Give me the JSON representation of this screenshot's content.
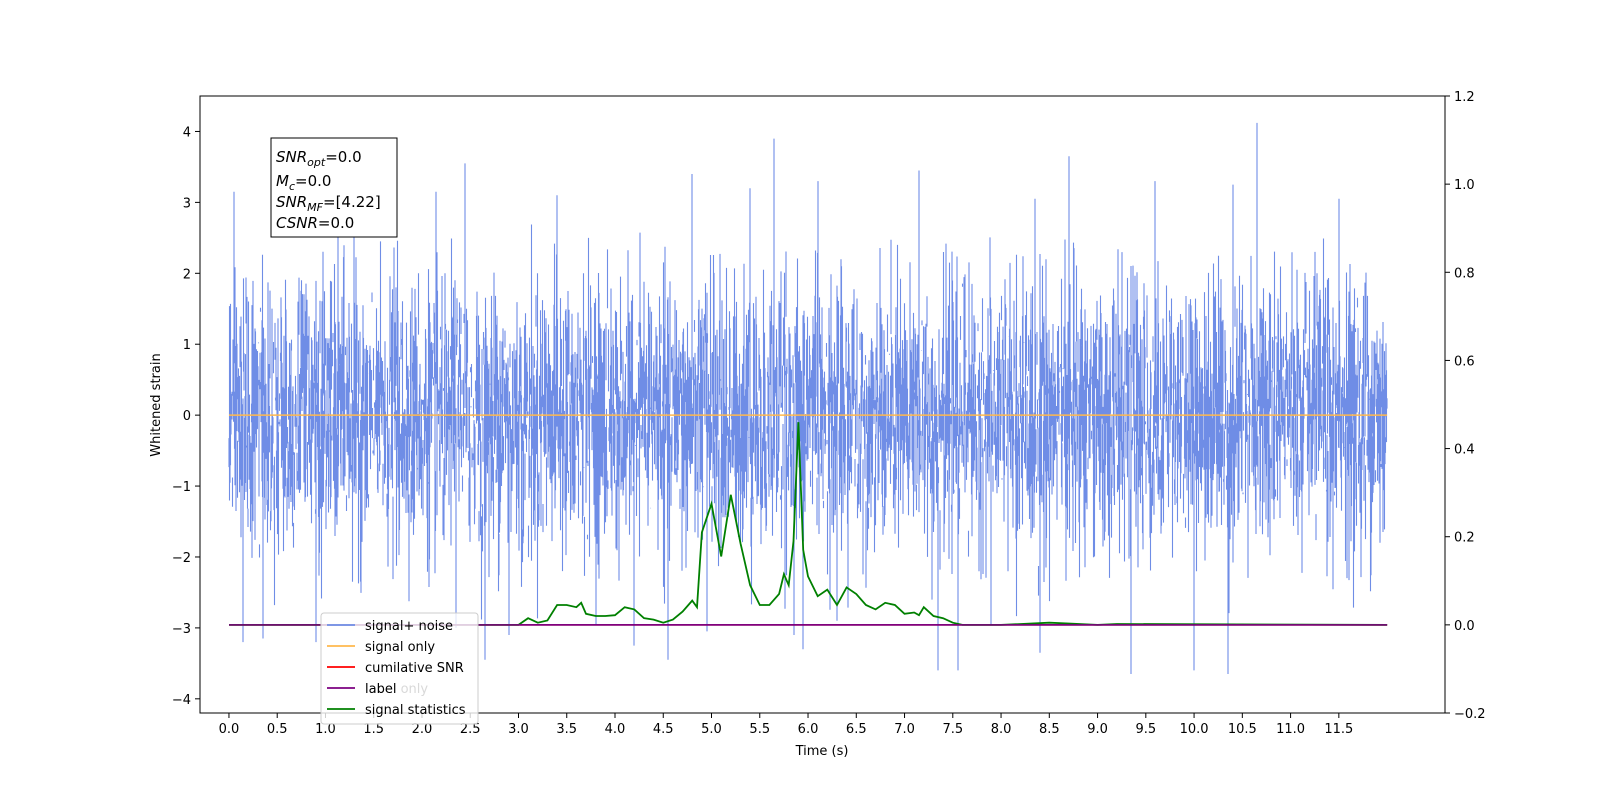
{
  "chart_data": {
    "type": "line",
    "xlabel": "Time (s)",
    "ylabel": "Whitened strain",
    "xlim": [
      -0.3,
      12.6
    ],
    "ylim": [
      -4.2,
      4.5
    ],
    "ylim_right": [
      -0.2,
      1.2
    ],
    "x_ticks": [
      0.0,
      0.5,
      1.0,
      1.5,
      2.0,
      2.5,
      3.0,
      3.5,
      4.0,
      4.5,
      5.0,
      5.5,
      6.0,
      6.5,
      7.0,
      7.5,
      8.0,
      8.5,
      9.0,
      9.5,
      10.0,
      10.5,
      11.0,
      11.5
    ],
    "x_tick_labels": [
      "0.0",
      "0.5",
      "1.0",
      "1.5",
      "2.0",
      "2.5",
      "3.0",
      "3.5",
      "4.0",
      "4.5",
      "5.0",
      "5.5",
      "6.0",
      "6.5",
      "7.0",
      "7.5",
      "8.0",
      "8.5",
      "9.0",
      "9.5",
      "10.0",
      "10.5",
      "11.0",
      "11.5"
    ],
    "y_ticks_left": [
      -4,
      -3,
      -2,
      -1,
      0,
      1,
      2,
      3,
      4
    ],
    "y_tick_labels_left": [
      "−4",
      "−3",
      "−2",
      "−1",
      "0",
      "1",
      "2",
      "3",
      "4"
    ],
    "y_ticks_right": [
      -0.2,
      0.0,
      0.2,
      0.4,
      0.6,
      0.8,
      1.0,
      1.2
    ],
    "y_tick_labels_right": [
      "−0.2",
      "0.0",
      "0.2",
      "0.4",
      "0.6",
      "0.8",
      "1.0",
      "1.2"
    ],
    "grid": false,
    "legend_placement": "lower-left",
    "annotation": {
      "lines": [
        {
          "base": "SNR",
          "sub": "opt",
          "rest": "=0.0"
        },
        {
          "base": "M",
          "sub": "c",
          "rest": "=0.0"
        },
        {
          "base": "SNR",
          "sub": "MF",
          "rest": "=[4.22]"
        },
        {
          "base": "CSNR",
          "sub": "",
          "rest": "=0.0"
        }
      ]
    },
    "series": [
      {
        "name": "signal+ noise",
        "color": "#6f8de6",
        "axis": "left",
        "kind": "noise",
        "x_range": [
          0.0,
          12.0
        ],
        "envelope": [
          -2.6,
          2.2
        ],
        "spikes": [
          [
            0.05,
            3.15
          ],
          [
            0.15,
            -3.2
          ],
          [
            0.35,
            -3.15
          ],
          [
            0.9,
            -3.2
          ],
          [
            1.3,
            2.8
          ],
          [
            2.15,
            3.15
          ],
          [
            2.35,
            -3.0
          ],
          [
            2.45,
            3.55
          ],
          [
            2.65,
            -3.45
          ],
          [
            2.9,
            -3.1
          ],
          [
            3.4,
            3.1
          ],
          [
            3.8,
            -2.95
          ],
          [
            4.2,
            -3.25
          ],
          [
            4.55,
            -3.45
          ],
          [
            4.8,
            3.4
          ],
          [
            4.95,
            -3.05
          ],
          [
            5.4,
            3.2
          ],
          [
            5.65,
            3.9
          ],
          [
            5.85,
            -3.1
          ],
          [
            5.95,
            -3.3
          ],
          [
            6.1,
            3.3
          ],
          [
            6.3,
            -2.9
          ],
          [
            7.15,
            3.45
          ],
          [
            7.35,
            -3.6
          ],
          [
            7.55,
            -3.6
          ],
          [
            7.9,
            -2.95
          ],
          [
            8.4,
            -3.35
          ],
          [
            8.35,
            3.05
          ],
          [
            8.7,
            3.65
          ],
          [
            9.35,
            -3.65
          ],
          [
            9.6,
            3.3
          ],
          [
            10.0,
            -3.6
          ],
          [
            10.35,
            -3.65
          ],
          [
            10.65,
            4.12
          ],
          [
            10.4,
            3.25
          ],
          [
            11.5,
            3.05
          ]
        ]
      },
      {
        "name": "signal only",
        "color": "#ffb84d",
        "axis": "left",
        "x": [
          0.0,
          12.0
        ],
        "y": [
          0.0,
          0.0
        ]
      },
      {
        "name": "cumilative SNR",
        "color": "#ff0000",
        "axis": "right",
        "x": [
          0.0,
          12.0
        ],
        "y": [
          0.0,
          0.0
        ]
      },
      {
        "name": "label",
        "color": "#7b0080",
        "axis": "right",
        "x": [
          0.0,
          12.0
        ],
        "y": [
          0.0,
          0.0
        ]
      },
      {
        "name": "signal statistics",
        "color": "#008000",
        "axis": "right",
        "x": [
          0.0,
          2.8,
          3.0,
          3.1,
          3.2,
          3.3,
          3.4,
          3.5,
          3.6,
          3.65,
          3.7,
          3.8,
          3.9,
          4.0,
          4.1,
          4.2,
          4.3,
          4.4,
          4.5,
          4.6,
          4.7,
          4.8,
          4.85,
          4.9,
          5.0,
          5.1,
          5.2,
          5.3,
          5.4,
          5.5,
          5.6,
          5.7,
          5.75,
          5.8,
          5.85,
          5.9,
          5.95,
          6.0,
          6.1,
          6.2,
          6.3,
          6.4,
          6.5,
          6.6,
          6.7,
          6.8,
          6.9,
          7.0,
          7.1,
          7.15,
          7.2,
          7.3,
          7.4,
          7.5,
          7.6,
          8.0,
          8.5,
          8.7,
          9.0,
          9.2,
          12.0
        ],
        "y": [
          0.0,
          0.0,
          0.0,
          0.015,
          0.005,
          0.01,
          0.045,
          0.045,
          0.04,
          0.05,
          0.025,
          0.02,
          0.02,
          0.022,
          0.04,
          0.035,
          0.015,
          0.012,
          0.005,
          0.012,
          0.03,
          0.055,
          0.04,
          0.21,
          0.275,
          0.155,
          0.295,
          0.185,
          0.09,
          0.045,
          0.045,
          0.07,
          0.115,
          0.09,
          0.19,
          0.46,
          0.17,
          0.11,
          0.065,
          0.08,
          0.045,
          0.085,
          0.07,
          0.045,
          0.035,
          0.05,
          0.045,
          0.025,
          0.028,
          0.022,
          0.04,
          0.02,
          0.015,
          0.005,
          0.0,
          0.0,
          0.005,
          0.003,
          0.0,
          0.002,
          0.0
        ]
      },
      {
        "name": "label only",
        "color": "#7b0080",
        "axis": "right",
        "x": [
          0.0,
          12.0
        ],
        "y": [
          0.0,
          0.0
        ]
      }
    ],
    "legend": [
      {
        "label": "signal+ noise",
        "color": "#6f8de6"
      },
      {
        "label": "signal only",
        "color": "#ffb84d"
      },
      {
        "label": "cumilative SNR",
        "color": "#ff0000"
      },
      {
        "label": "label",
        "color": "#7b0080"
      },
      {
        "label": "signal statistics",
        "color": "#008000"
      }
    ],
    "legend_hidden_text": "label only"
  }
}
